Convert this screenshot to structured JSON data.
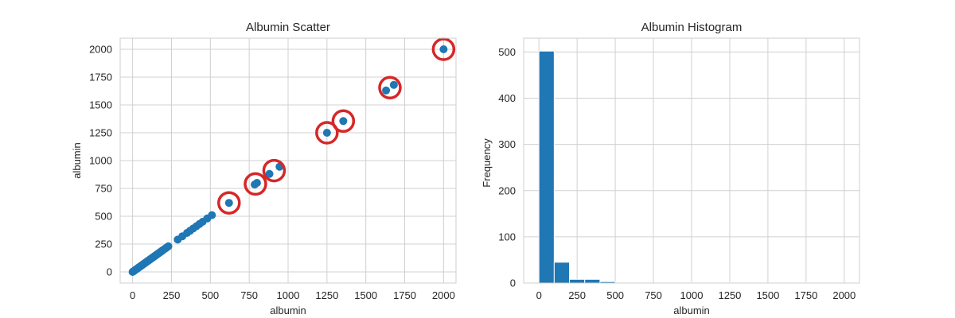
{
  "chart_data": [
    {
      "type": "scatter",
      "title": "Albumin Scatter",
      "xlabel": "albumin",
      "ylabel": "albumin",
      "xlim": [
        -80,
        2080
      ],
      "ylim": [
        -100,
        2100
      ],
      "xticks": [
        0,
        250,
        500,
        750,
        1000,
        1250,
        1500,
        1750,
        2000
      ],
      "yticks": [
        0,
        250,
        500,
        750,
        1000,
        1250,
        1500,
        1750,
        2000
      ],
      "grid": true,
      "point_color": "#1f77b4",
      "highlight_color": "#d62728",
      "points": [
        [
          0,
          0
        ],
        [
          5,
          5
        ],
        [
          10,
          10
        ],
        [
          15,
          15
        ],
        [
          20,
          20
        ],
        [
          25,
          25
        ],
        [
          30,
          30
        ],
        [
          35,
          35
        ],
        [
          40,
          40
        ],
        [
          45,
          45
        ],
        [
          50,
          50
        ],
        [
          55,
          55
        ],
        [
          60,
          60
        ],
        [
          65,
          65
        ],
        [
          70,
          70
        ],
        [
          75,
          75
        ],
        [
          80,
          80
        ],
        [
          85,
          85
        ],
        [
          90,
          90
        ],
        [
          95,
          95
        ],
        [
          100,
          100
        ],
        [
          105,
          105
        ],
        [
          110,
          110
        ],
        [
          115,
          115
        ],
        [
          120,
          120
        ],
        [
          125,
          125
        ],
        [
          130,
          130
        ],
        [
          135,
          135
        ],
        [
          140,
          140
        ],
        [
          145,
          145
        ],
        [
          150,
          150
        ],
        [
          155,
          155
        ],
        [
          160,
          160
        ],
        [
          165,
          165
        ],
        [
          170,
          170
        ],
        [
          175,
          175
        ],
        [
          180,
          180
        ],
        [
          185,
          185
        ],
        [
          190,
          190
        ],
        [
          195,
          195
        ],
        [
          200,
          200
        ],
        [
          210,
          210
        ],
        [
          220,
          220
        ],
        [
          230,
          230
        ],
        [
          290,
          290
        ],
        [
          320,
          320
        ],
        [
          350,
          350
        ],
        [
          370,
          370
        ],
        [
          390,
          390
        ],
        [
          410,
          410
        ],
        [
          430,
          430
        ],
        [
          450,
          450
        ],
        [
          480,
          480
        ],
        [
          510,
          510
        ],
        [
          620,
          620
        ],
        [
          785,
          785
        ],
        [
          800,
          800
        ],
        [
          880,
          880
        ],
        [
          945,
          945
        ],
        [
          1250,
          1250
        ],
        [
          1355,
          1355
        ],
        [
          1630,
          1630
        ],
        [
          1680,
          1680
        ],
        [
          2000,
          2000
        ]
      ],
      "highlighted": [
        {
          "x": 620,
          "y": 620
        },
        {
          "x": 790,
          "y": 790
        },
        {
          "x": 910,
          "y": 910
        },
        {
          "x": 1250,
          "y": 1250
        },
        {
          "x": 1355,
          "y": 1355
        },
        {
          "x": 1655,
          "y": 1655
        },
        {
          "x": 2000,
          "y": 2000
        }
      ]
    },
    {
      "type": "bar",
      "title": "Albumin Histogram",
      "xlabel": "albumin",
      "ylabel": "Frequency",
      "xlim": [
        -100,
        2100
      ],
      "ylim": [
        0,
        530
      ],
      "xticks": [
        0,
        250,
        500,
        750,
        1000,
        1250,
        1500,
        1750,
        2000
      ],
      "yticks": [
        0,
        100,
        200,
        300,
        400,
        500
      ],
      "grid": true,
      "bar_color": "#1f77b4",
      "bin_start": 0,
      "bin_width": 100,
      "counts": [
        502,
        45,
        8,
        8,
        3,
        0,
        1,
        0,
        1,
        1,
        0,
        0,
        1,
        1,
        0,
        0,
        1,
        1,
        0,
        0
      ]
    }
  ]
}
